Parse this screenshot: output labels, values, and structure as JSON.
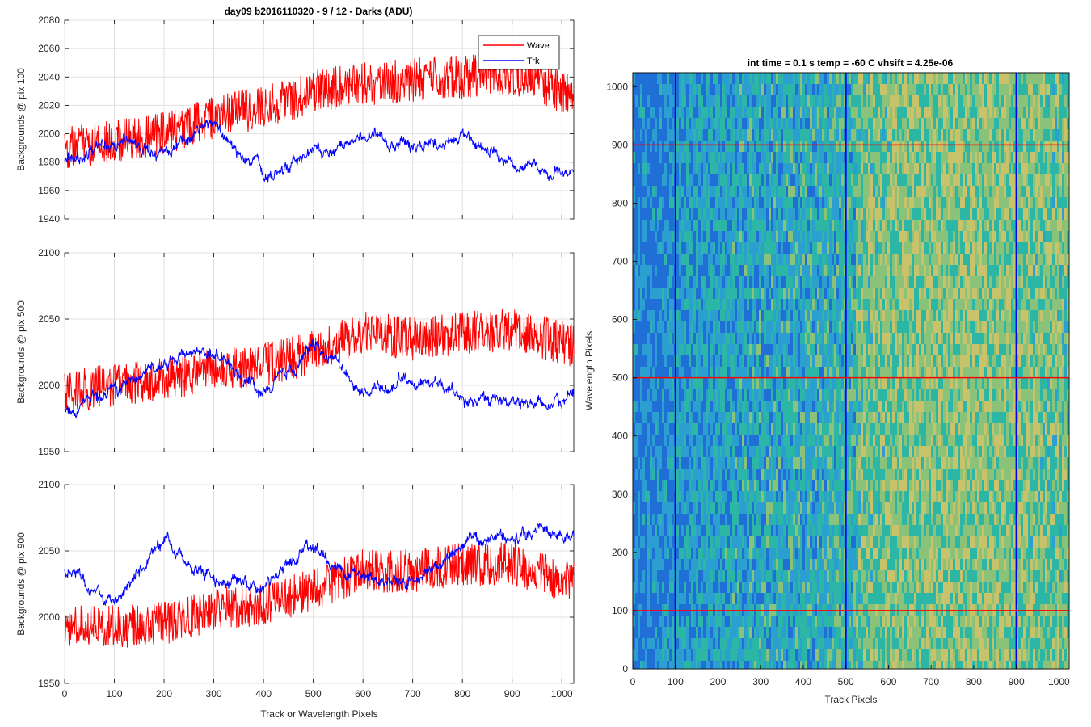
{
  "figure": {
    "title": "day09 b2016110320 - 9 / 12 - Darks (ADU)"
  },
  "chart_data": [
    {
      "type": "line",
      "ylabel": "Backgrounds @ pix 100",
      "xlabel": "",
      "xlim": [
        0,
        1024
      ],
      "ylim": [
        1940,
        2080
      ],
      "xticks": [
        0,
        100,
        200,
        300,
        400,
        500,
        600,
        700,
        800,
        900,
        1000
      ],
      "yticks": [
        1940,
        1960,
        1980,
        2000,
        2020,
        2040,
        2060,
        2080
      ],
      "grid": true,
      "legend": {
        "position": "top-right",
        "entries": [
          "Wave",
          "Trk"
        ]
      },
      "series": [
        {
          "name": "Wave",
          "color": "#ff0000",
          "x": [
            0,
            100,
            200,
            300,
            400,
            500,
            600,
            700,
            800,
            900,
            1024
          ],
          "values": [
            1990,
            1995,
            2000,
            2012,
            2018,
            2030,
            2035,
            2038,
            2040,
            2043,
            2025
          ]
        },
        {
          "name": "Trk",
          "color": "#0000ff",
          "x": [
            0,
            100,
            200,
            300,
            400,
            500,
            600,
            700,
            800,
            900,
            1024
          ],
          "values": [
            1980,
            1995,
            1985,
            2005,
            1972,
            1985,
            2000,
            1990,
            1998,
            1978,
            1972
          ]
        }
      ]
    },
    {
      "type": "line",
      "ylabel": "Backgrounds @ pix 500",
      "xlabel": "",
      "xlim": [
        0,
        1024
      ],
      "ylim": [
        1950,
        2100
      ],
      "xticks": [
        0,
        100,
        200,
        300,
        400,
        500,
        600,
        700,
        800,
        900,
        1000
      ],
      "yticks": [
        1950,
        2000,
        2050,
        2100
      ],
      "grid": true,
      "series": [
        {
          "name": "Wave",
          "color": "#ff0000",
          "x": [
            0,
            100,
            200,
            300,
            400,
            500,
            600,
            700,
            800,
            900,
            1024
          ],
          "values": [
            1995,
            2000,
            2005,
            2012,
            2015,
            2025,
            2040,
            2035,
            2040,
            2042,
            2030
          ]
        },
        {
          "name": "Trk",
          "color": "#0000ff",
          "x": [
            0,
            100,
            200,
            300,
            400,
            500,
            600,
            700,
            800,
            900,
            1024
          ],
          "values": [
            1985,
            1995,
            2020,
            2030,
            1995,
            2030,
            1995,
            2005,
            1990,
            1985,
            1990
          ]
        }
      ]
    },
    {
      "type": "line",
      "ylabel": "Backgrounds @ pix 900",
      "xlabel": "Track or Wavelength Pixels",
      "xlim": [
        0,
        1024
      ],
      "ylim": [
        1950,
        2100
      ],
      "xticks": [
        0,
        100,
        200,
        300,
        400,
        500,
        600,
        700,
        800,
        900,
        1000
      ],
      "yticks": [
        1950,
        2000,
        2050,
        2100
      ],
      "grid": true,
      "series": [
        {
          "name": "Wave",
          "color": "#ff0000",
          "x": [
            0,
            100,
            200,
            300,
            400,
            500,
            600,
            700,
            800,
            900,
            1024
          ],
          "values": [
            1995,
            1993,
            1995,
            2005,
            2010,
            2020,
            2035,
            2035,
            2040,
            2040,
            2025
          ]
        },
        {
          "name": "Trk",
          "color": "#0000ff",
          "x": [
            0,
            100,
            200,
            300,
            400,
            500,
            600,
            700,
            800,
            900,
            1024
          ],
          "values": [
            2035,
            2010,
            2060,
            2030,
            2025,
            2055,
            2030,
            2025,
            2055,
            2065,
            2060
          ]
        }
      ]
    },
    {
      "type": "heatmap",
      "title": "int time = 0.1 s   temp = -60 C   vhsift = 4.25e-06",
      "xlabel": "Track Pixels",
      "ylabel": "Wavelength Pixels",
      "xlim": [
        0,
        1024
      ],
      "ylim": [
        0,
        1024
      ],
      "xticks": [
        0,
        100,
        200,
        300,
        400,
        500,
        600,
        700,
        800,
        900,
        1000
      ],
      "yticks": [
        0,
        100,
        200,
        300,
        400,
        500,
        600,
        700,
        800,
        900,
        1000
      ],
      "vertical_markers": {
        "color": "#0000ff",
        "x": [
          100,
          500,
          900
        ]
      },
      "horizontal_markers": {
        "color": "#ff0000",
        "y": [
          100,
          500,
          900
        ]
      },
      "colormap": [
        "#1f6fd6",
        "#2a9fd0",
        "#2bb6a6",
        "#8ac27a",
        "#c8c36a"
      ]
    }
  ]
}
